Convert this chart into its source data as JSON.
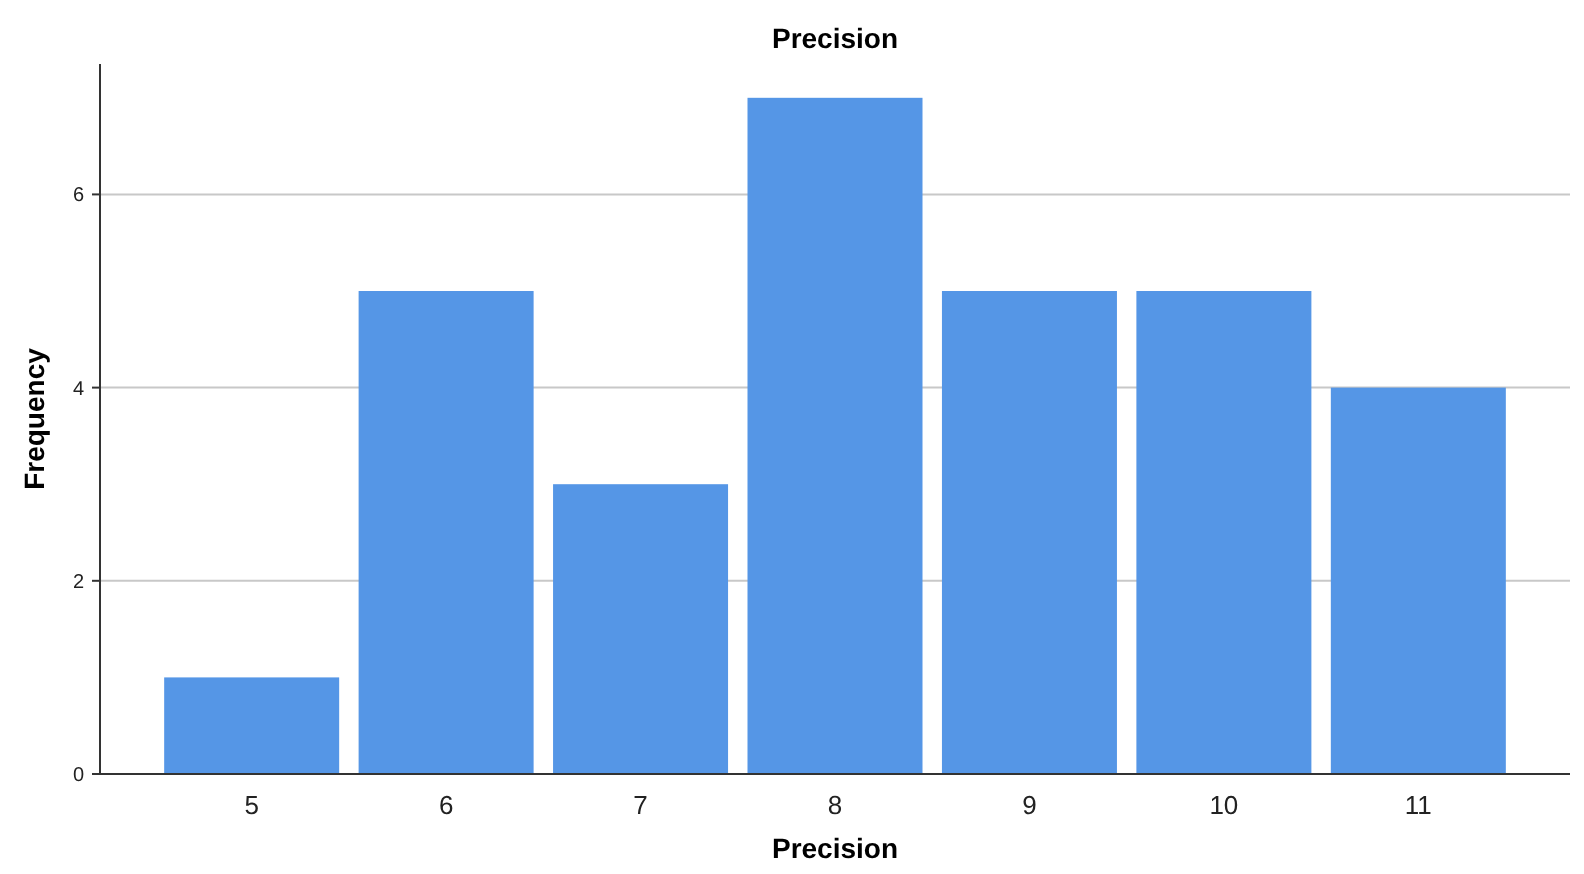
{
  "chart_data": {
    "type": "bar",
    "title": "Precision",
    "xlabel": "Precision",
    "ylabel": "Frequency",
    "categories": [
      "5",
      "6",
      "7",
      "8",
      "9",
      "10",
      "11"
    ],
    "values": [
      1,
      5,
      3,
      7,
      5,
      5,
      4
    ],
    "color": "#5596e6",
    "ylim": [
      0,
      7.35
    ],
    "yticks": [
      0,
      2,
      4,
      6
    ],
    "grid": "y"
  }
}
